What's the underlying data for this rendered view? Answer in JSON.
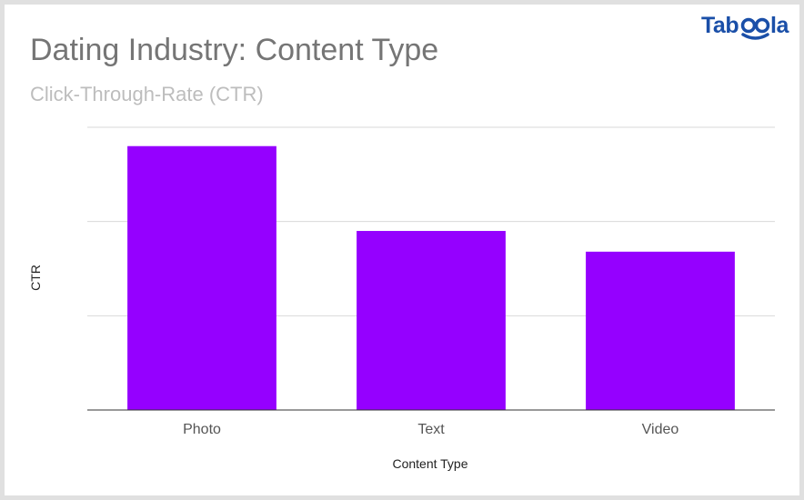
{
  "header": {
    "title": "Dating Industry: Content Type",
    "subtitle": "Click-Through-Rate (CTR)"
  },
  "brand": {
    "logo_text": "Taboola",
    "logo_color": "#1a4fa8"
  },
  "colors": {
    "bar": "#9500ff",
    "gridline": "#d9d9d9",
    "baseline": "#333333",
    "tick_label": "#555555",
    "axis_title": "#222222"
  },
  "chart_data": {
    "type": "bar",
    "categories": [
      "Photo",
      "Text",
      "Video"
    ],
    "values": [
      2.8,
      1.9,
      1.68
    ],
    "xlabel": "Content Type",
    "ylabel": "CTR",
    "ylim": [
      0,
      3
    ],
    "grid": true,
    "legend": "none"
  }
}
